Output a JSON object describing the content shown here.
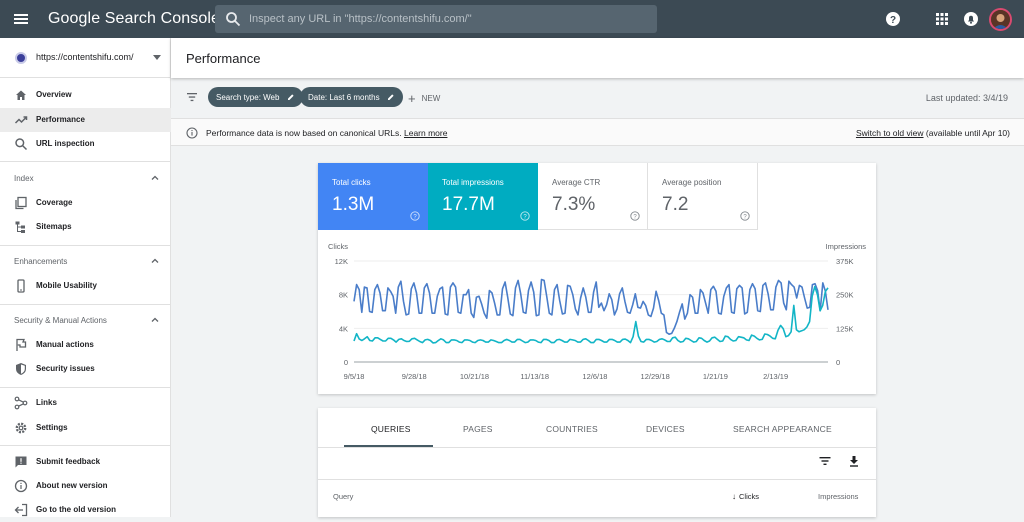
{
  "app": {
    "title": "Google Search Console"
  },
  "search": {
    "placeholder": "Inspect any URL in \"https://contentshifu.com/\""
  },
  "sidebar": {
    "property": "https://contentshifu.com/",
    "items": [
      {
        "label": "Overview"
      },
      {
        "label": "Performance"
      },
      {
        "label": "URL inspection"
      },
      {
        "label": "Coverage"
      },
      {
        "label": "Sitemaps"
      },
      {
        "label": "Mobile Usability"
      },
      {
        "label": "Manual actions"
      },
      {
        "label": "Security issues"
      },
      {
        "label": "Links"
      },
      {
        "label": "Settings"
      },
      {
        "label": "Submit feedback"
      },
      {
        "label": "About new version"
      },
      {
        "label": "Go to the old version"
      }
    ],
    "sections": {
      "index": "Index",
      "enhancements": "Enhancements",
      "security": "Security & Manual Actions"
    }
  },
  "page": {
    "title": "Performance"
  },
  "filters": {
    "chip1": "Search type: Web",
    "chip2": "Date: Last 6 months",
    "new_label": "NEW",
    "last_updated": "Last updated: 3/4/19"
  },
  "notice": {
    "text": "Performance data is now based on canonical URLs.",
    "link": "Learn more",
    "switch_link": "Switch to old view",
    "switch_suffix": "(available until Apr 10)"
  },
  "metrics": [
    {
      "label": "Total clicks",
      "value": "1.3M"
    },
    {
      "label": "Total impressions",
      "value": "17.7M"
    },
    {
      "label": "Average CTR",
      "value": "7.3%"
    },
    {
      "label": "Average position",
      "value": "7.2"
    }
  ],
  "chart_data": {
    "type": "line",
    "title": "",
    "xlabel": "",
    "ylabel": "Clicks",
    "y2label": "Impressions",
    "ylim": [
      0,
      12000
    ],
    "y2lim": [
      0,
      375000
    ],
    "y_ticks": [
      "12K",
      "8K",
      "4K",
      "0"
    ],
    "y2_ticks": [
      "375K",
      "250K",
      "125K",
      "0"
    ],
    "x_ticks": [
      "9/5/18",
      "9/28/18",
      "10/21/18",
      "11/13/18",
      "12/6/18",
      "12/29/18",
      "1/21/19",
      "2/13/19"
    ],
    "x_tick_days": [
      0,
      23,
      46,
      69,
      92,
      115,
      138,
      161
    ],
    "x_max_days": 181,
    "grid": true,
    "series": [
      {
        "name": "Clicks",
        "color": "#4a7dc9",
        "axis": "left",
        "values": [
          7200,
          9200,
          8600,
          5900,
          8900,
          8800,
          6000,
          5900,
          8600,
          9200,
          8200,
          6100,
          6100,
          8800,
          8400,
          7800,
          5800,
          8900,
          9600,
          7200,
          5600,
          5700,
          8700,
          9400,
          8200,
          5800,
          5800,
          8800,
          9300,
          8200,
          5800,
          5800,
          7800,
          8700,
          8900,
          5700,
          5600,
          8900,
          9400,
          8900,
          5900,
          5800,
          8000,
          8000,
          8600,
          5800,
          5300,
          7700,
          7800,
          6900,
          5800,
          5200,
          8500,
          8200,
          7000,
          5600,
          5600,
          8700,
          9500,
          7700,
          5700,
          5500,
          8800,
          9700,
          8100,
          5900,
          5800,
          8500,
          9500,
          8300,
          5500,
          5600,
          9800,
          9700,
          7800,
          5800,
          5600,
          8600,
          9200,
          7300,
          5700,
          5800,
          9100,
          9000,
          8000,
          6300,
          5600,
          7600,
          8800,
          7700,
          5900,
          5900,
          8300,
          9500,
          6500,
          7000,
          6100,
          6800,
          8100,
          7400,
          5600,
          6300,
          8100,
          8800,
          7200,
          5900,
          5800,
          6800,
          8100,
          6500,
          6400,
          7200,
          6700,
          5600,
          5400,
          6400,
          8400,
          7300,
          5800,
          5600,
          3500,
          3300,
          3400,
          4000,
          4800,
          5900,
          6900,
          5100,
          5800,
          8000,
          7700,
          5800,
          5800,
          8600,
          8200,
          7000,
          5800,
          8600,
          9000,
          8400,
          5800,
          5700,
          7800,
          8800,
          9200,
          5900,
          5800,
          8700,
          9100,
          8800,
          5700,
          5900,
          8600,
          9300,
          8700,
          6100,
          6000,
          9100,
          9400,
          8100,
          6200,
          6200,
          8900,
          9700,
          9400,
          7000,
          6200,
          9600,
          9200,
          8900,
          7600,
          9100,
          8900,
          7600,
          6400,
          6500,
          9200,
          9300,
          8500,
          6100,
          9400,
          8400,
          6200
        ]
      },
      {
        "name": "Impressions",
        "color": "#12b5c6",
        "axis": "right",
        "values": [
          78000,
          105000,
          85000,
          80000,
          86000,
          94000,
          80000,
          78000,
          90000,
          90000,
          84000,
          78000,
          78000,
          88000,
          88000,
          82000,
          74000,
          84000,
          86000,
          80000,
          76000,
          77000,
          86000,
          88000,
          82000,
          76000,
          72000,
          82000,
          84000,
          80000,
          71000,
          72000,
          80000,
          86000,
          82000,
          72000,
          72000,
          82000,
          82000,
          80000,
          74000,
          72000,
          82000,
          82000,
          80000,
          74000,
          72000,
          80000,
          82000,
          80000,
          74000,
          74000,
          82000,
          80000,
          76000,
          72000,
          72000,
          80000,
          84000,
          80000,
          74000,
          74000,
          84000,
          84000,
          78000,
          72000,
          74000,
          82000,
          82000,
          80000,
          74000,
          72000,
          84000,
          84000,
          80000,
          72000,
          72000,
          82000,
          84000,
          80000,
          74000,
          74000,
          84000,
          82000,
          80000,
          74000,
          74000,
          84000,
          86000,
          80000,
          72000,
          72000,
          84000,
          84000,
          80000,
          74000,
          74000,
          84000,
          84000,
          80000,
          74000,
          74000,
          84000,
          85000,
          80000,
          72000,
          94000,
          150000,
          96000,
          76000,
          74000,
          84000,
          84000,
          80000,
          74000,
          76000,
          84000,
          86000,
          82000,
          76000,
          76000,
          90000,
          92000,
          80000,
          74000,
          76000,
          88000,
          86000,
          80000,
          74000,
          76000,
          90000,
          88000,
          80000,
          74000,
          78000,
          90000,
          92000,
          84000,
          76000,
          78000,
          96000,
          94000,
          84000,
          78000,
          80000,
          94000,
          92000,
          90000,
          82000,
          80000,
          100000,
          96000,
          88000,
          82000,
          84000,
          104000,
          102000,
          96000,
          88000,
          86000,
          118000,
          136000,
          124000,
          94000,
          98000,
          112000,
          210000,
          120000,
          112000,
          116000,
          120000,
          130000,
          150000,
          245000,
          280000,
          250000,
          190000,
          210000,
          262000,
          275000
        ]
      }
    ]
  },
  "tabs": [
    "QUERIES",
    "PAGES",
    "COUNTRIES",
    "DEVICES",
    "SEARCH APPEARANCE"
  ],
  "table": {
    "col_query": "Query",
    "col_clicks": "Clicks",
    "col_impressions": "Impressions"
  }
}
